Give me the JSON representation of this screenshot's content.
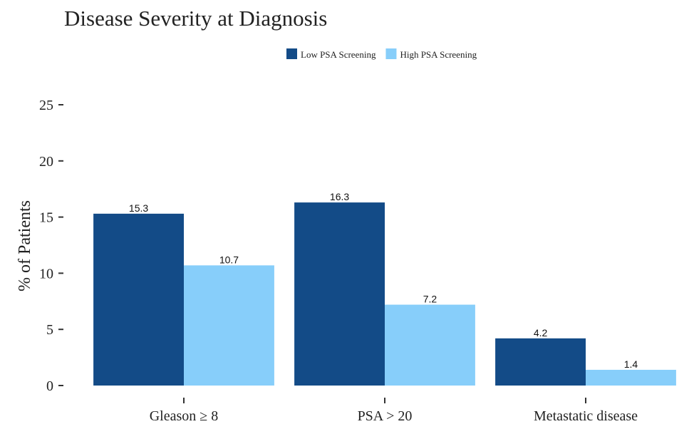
{
  "chart_data": {
    "type": "bar",
    "title": "Disease Severity at Diagnosis",
    "y_label": "% of Patients",
    "categories": [
      "Gleason ≥ 8",
      "PSA > 20",
      "Metastatic disease"
    ],
    "series": [
      {
        "name": "Low PSA Screening",
        "color": "#134b87",
        "values": [
          15.3,
          16.3,
          4.2
        ]
      },
      {
        "name": "High PSA Screening",
        "color": "#87cefa",
        "values": [
          10.7,
          7.2,
          1.4
        ]
      }
    ],
    "ylim": [
      0,
      25
    ],
    "yticks": [
      0,
      5,
      10,
      15,
      20,
      25
    ],
    "legend": "top"
  }
}
